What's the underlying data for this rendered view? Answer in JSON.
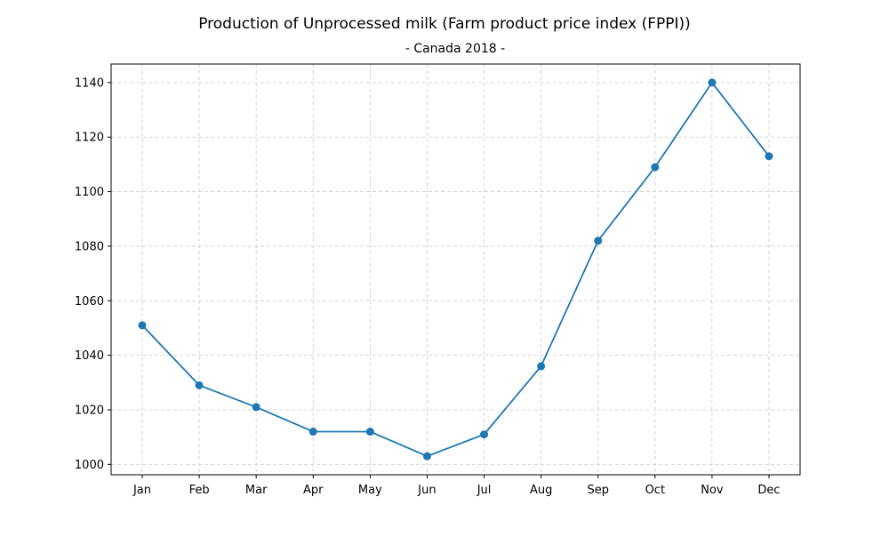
{
  "chart_data": {
    "type": "line",
    "title": "Production of Unprocessed milk (Farm product price index (FPPI))",
    "subtitle": "- Canada 2018 -",
    "xlabel": "",
    "ylabel": "",
    "categories": [
      "Jan",
      "Feb",
      "Mar",
      "Apr",
      "May",
      "Jun",
      "Jul",
      "Aug",
      "Sep",
      "Oct",
      "Nov",
      "Dec"
    ],
    "series": [
      {
        "values": [
          1051,
          1029,
          1021,
          1012,
          1012,
          1003,
          1011,
          1036,
          1082,
          1109,
          1140,
          1113
        ]
      }
    ],
    "y_ticks": [
      1000,
      1020,
      1040,
      1060,
      1080,
      1100,
      1120,
      1140
    ],
    "ylim": [
      996.2,
      1146.8
    ],
    "grid": true,
    "grid_style": "dashed",
    "legend": "none",
    "colors": {
      "line": "#1f77b4",
      "grid": "#cccccc",
      "axes": "#000000"
    }
  }
}
